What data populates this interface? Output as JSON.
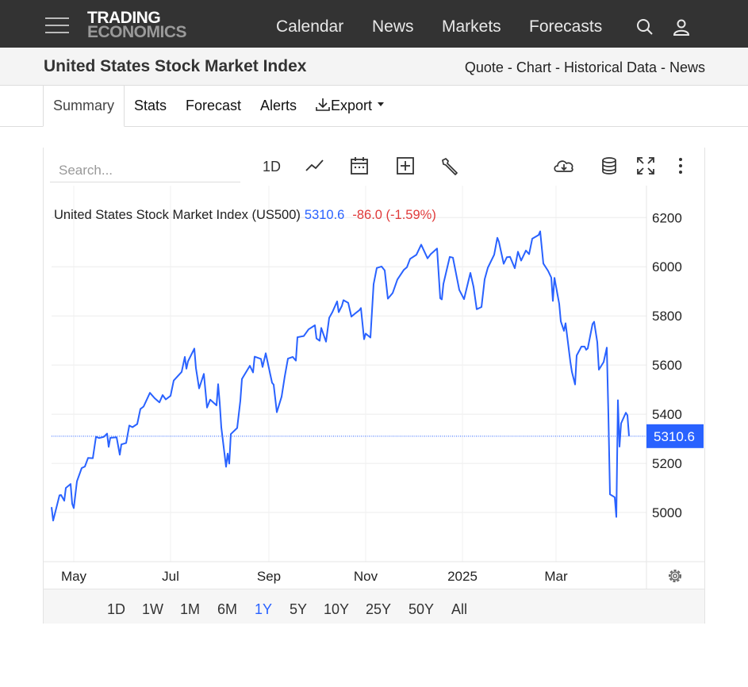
{
  "header": {
    "logo_line1": "TRADING",
    "logo_line2": "ECONOMICS",
    "nav": [
      "Calendar",
      "News",
      "Markets",
      "Forecasts"
    ]
  },
  "subheader": {
    "title": "United States Stock Market Index",
    "links": [
      "Quote",
      "Chart",
      "Historical Data",
      "News"
    ],
    "separator": " - "
  },
  "tabs": [
    {
      "label": "Summary",
      "active": true
    },
    {
      "label": "Stats"
    },
    {
      "label": "Forecast"
    },
    {
      "label": "Alerts"
    },
    {
      "label": "Export"
    }
  ],
  "toolbar": {
    "search_placeholder": "Search...",
    "interval_label": "1D"
  },
  "chart_data": {
    "type": "line",
    "legend": {
      "name": "United States Stock Market Index (US500)",
      "last": "5310.6",
      "change": "-86.0 (-1.59%)"
    },
    "last_value": 5310.6,
    "last_label": "5310.6",
    "ylim": [
      4800,
      6330
    ],
    "yticks": [
      5000,
      5200,
      5400,
      5600,
      5800,
      6000,
      6200
    ],
    "x_range": [
      "2024-04-17",
      "2025-04-18"
    ],
    "xticks": [
      {
        "date": "2024-05-01",
        "label": "May"
      },
      {
        "date": "2024-07-01",
        "label": "Jul"
      },
      {
        "date": "2024-09-01",
        "label": "Sep"
      },
      {
        "date": "2024-11-01",
        "label": "Nov"
      },
      {
        "date": "2025-01-01",
        "label": "2025"
      },
      {
        "date": "2025-03-01",
        "label": "Mar"
      }
    ],
    "colors": {
      "line": "#2962ff",
      "change": "#e03a3a",
      "price_tag": "#2962ff"
    },
    "grid": true,
    "series": [
      {
        "points": [
          [
            "2024-04-17",
            5022
          ],
          [
            "2024-04-18",
            4967
          ],
          [
            "2024-04-22",
            5070
          ],
          [
            "2024-04-23",
            5071
          ],
          [
            "2024-04-25",
            5048
          ],
          [
            "2024-04-26",
            5100
          ],
          [
            "2024-04-29",
            5116
          ],
          [
            "2024-04-30",
            5036
          ],
          [
            "2024-05-01",
            5018
          ],
          [
            "2024-05-03",
            5127
          ],
          [
            "2024-05-06",
            5181
          ],
          [
            "2024-05-08",
            5187
          ],
          [
            "2024-05-10",
            5222
          ],
          [
            "2024-05-13",
            5221
          ],
          [
            "2024-05-15",
            5308
          ],
          [
            "2024-05-17",
            5303
          ],
          [
            "2024-05-20",
            5308
          ],
          [
            "2024-05-22",
            5321
          ],
          [
            "2024-05-23",
            5267
          ],
          [
            "2024-05-24",
            5304
          ],
          [
            "2024-05-28",
            5306
          ],
          [
            "2024-05-30",
            5235
          ],
          [
            "2024-05-31",
            5277
          ],
          [
            "2024-06-03",
            5283
          ],
          [
            "2024-06-05",
            5354
          ],
          [
            "2024-06-07",
            5347
          ],
          [
            "2024-06-10",
            5360
          ],
          [
            "2024-06-12",
            5421
          ],
          [
            "2024-06-14",
            5431
          ],
          [
            "2024-06-18",
            5487
          ],
          [
            "2024-06-21",
            5465
          ],
          [
            "2024-06-24",
            5448
          ],
          [
            "2024-06-26",
            5478
          ],
          [
            "2024-06-28",
            5460
          ],
          [
            "2024-07-01",
            5475
          ],
          [
            "2024-07-03",
            5537
          ],
          [
            "2024-07-08",
            5572
          ],
          [
            "2024-07-10",
            5633
          ],
          [
            "2024-07-11",
            5585
          ],
          [
            "2024-07-12",
            5615
          ],
          [
            "2024-07-16",
            5667
          ],
          [
            "2024-07-17",
            5588
          ],
          [
            "2024-07-19",
            5505
          ],
          [
            "2024-07-22",
            5564
          ],
          [
            "2024-07-24",
            5427
          ],
          [
            "2024-07-26",
            5459
          ],
          [
            "2024-07-30",
            5436
          ],
          [
            "2024-07-31",
            5522
          ],
          [
            "2024-08-01",
            5446
          ],
          [
            "2024-08-02",
            5346
          ],
          [
            "2024-08-05",
            5186
          ],
          [
            "2024-08-06",
            5240
          ],
          [
            "2024-08-07",
            5199
          ],
          [
            "2024-08-08",
            5319
          ],
          [
            "2024-08-12",
            5344
          ],
          [
            "2024-08-14",
            5455
          ],
          [
            "2024-08-15",
            5543
          ],
          [
            "2024-08-16",
            5554
          ],
          [
            "2024-08-20",
            5597
          ],
          [
            "2024-08-22",
            5570
          ],
          [
            "2024-08-23",
            5634
          ],
          [
            "2024-08-27",
            5625
          ],
          [
            "2024-08-28",
            5592
          ],
          [
            "2024-08-30",
            5648
          ],
          [
            "2024-09-03",
            5528
          ],
          [
            "2024-09-04",
            5520
          ],
          [
            "2024-09-06",
            5408
          ],
          [
            "2024-09-09",
            5471
          ],
          [
            "2024-09-11",
            5554
          ],
          [
            "2024-09-13",
            5626
          ],
          [
            "2024-09-16",
            5633
          ],
          [
            "2024-09-18",
            5618
          ],
          [
            "2024-09-19",
            5713
          ],
          [
            "2024-09-23",
            5718
          ],
          [
            "2024-09-26",
            5745
          ],
          [
            "2024-09-30",
            5762
          ],
          [
            "2024-10-01",
            5708
          ],
          [
            "2024-10-03",
            5699
          ],
          [
            "2024-10-04",
            5751
          ],
          [
            "2024-10-07",
            5695
          ],
          [
            "2024-10-09",
            5792
          ],
          [
            "2024-10-11",
            5815
          ],
          [
            "2024-10-14",
            5859
          ],
          [
            "2024-10-15",
            5815
          ],
          [
            "2024-10-17",
            5841
          ],
          [
            "2024-10-18",
            5864
          ],
          [
            "2024-10-21",
            5853
          ],
          [
            "2024-10-23",
            5797
          ],
          [
            "2024-10-25",
            5808
          ],
          [
            "2024-10-28",
            5823
          ],
          [
            "2024-10-29",
            5832
          ],
          [
            "2024-10-31",
            5705
          ],
          [
            "2024-11-01",
            5728
          ],
          [
            "2024-11-04",
            5712
          ],
          [
            "2024-11-06",
            5929
          ],
          [
            "2024-11-08",
            5995
          ],
          [
            "2024-11-11",
            6001
          ],
          [
            "2024-11-13",
            5985
          ],
          [
            "2024-11-15",
            5870
          ],
          [
            "2024-11-18",
            5893
          ],
          [
            "2024-11-21",
            5948
          ],
          [
            "2024-11-25",
            5987
          ],
          [
            "2024-11-27",
            5998
          ],
          [
            "2024-11-29",
            6032
          ],
          [
            "2024-12-03",
            6049
          ],
          [
            "2024-12-06",
            6090
          ],
          [
            "2024-12-10",
            6034
          ],
          [
            "2024-12-12",
            6051
          ],
          [
            "2024-12-16",
            6074
          ],
          [
            "2024-12-18",
            5872
          ],
          [
            "2024-12-19",
            5867
          ],
          [
            "2024-12-20",
            5930
          ],
          [
            "2024-12-24",
            6040
          ],
          [
            "2024-12-26",
            6037
          ],
          [
            "2024-12-30",
            5906
          ],
          [
            "2025-01-02",
            5868
          ],
          [
            "2025-01-06",
            5975
          ],
          [
            "2025-01-08",
            5918
          ],
          [
            "2025-01-10",
            5827
          ],
          [
            "2025-01-13",
            5836
          ],
          [
            "2025-01-15",
            5949
          ],
          [
            "2025-01-17",
            5996
          ],
          [
            "2025-01-21",
            6049
          ],
          [
            "2025-01-23",
            6118
          ],
          [
            "2025-01-24",
            6101
          ],
          [
            "2025-01-27",
            6012
          ],
          [
            "2025-01-29",
            6039
          ],
          [
            "2025-01-31",
            6040
          ],
          [
            "2025-02-03",
            5994
          ],
          [
            "2025-02-05",
            6061
          ],
          [
            "2025-02-07",
            6025
          ],
          [
            "2025-02-10",
            6066
          ],
          [
            "2025-02-12",
            6051
          ],
          [
            "2025-02-14",
            6114
          ],
          [
            "2025-02-18",
            6129
          ],
          [
            "2025-02-19",
            6144
          ],
          [
            "2025-02-21",
            6013
          ],
          [
            "2025-02-24",
            5983
          ],
          [
            "2025-02-26",
            5956
          ],
          [
            "2025-02-27",
            5861
          ],
          [
            "2025-02-28",
            5955
          ],
          [
            "2025-03-03",
            5849
          ],
          [
            "2025-03-04",
            5778
          ],
          [
            "2025-03-06",
            5739
          ],
          [
            "2025-03-07",
            5770
          ],
          [
            "2025-03-10",
            5614
          ],
          [
            "2025-03-11",
            5572
          ],
          [
            "2025-03-13",
            5521
          ],
          [
            "2025-03-14",
            5639
          ],
          [
            "2025-03-17",
            5675
          ],
          [
            "2025-03-19",
            5675
          ],
          [
            "2025-03-20",
            5662
          ],
          [
            "2025-03-21",
            5668
          ],
          [
            "2025-03-24",
            5767
          ],
          [
            "2025-03-25",
            5776
          ],
          [
            "2025-03-27",
            5693
          ],
          [
            "2025-03-28",
            5581
          ],
          [
            "2025-03-31",
            5612
          ],
          [
            "2025-04-02",
            5671
          ],
          [
            "2025-04-03",
            5397
          ],
          [
            "2025-04-04",
            5074
          ],
          [
            "2025-04-07",
            5062
          ],
          [
            "2025-04-08",
            4982
          ],
          [
            "2025-04-09",
            5457
          ],
          [
            "2025-04-10",
            5268
          ],
          [
            "2025-04-11",
            5363
          ],
          [
            "2025-04-14",
            5406
          ],
          [
            "2025-04-15",
            5396
          ],
          [
            "2025-04-16",
            5310.6
          ]
        ]
      }
    ]
  },
  "ranges": {
    "items": [
      "1D",
      "1W",
      "1M",
      "6M",
      "1Y",
      "5Y",
      "10Y",
      "25Y",
      "50Y",
      "All"
    ],
    "active": "1Y"
  }
}
